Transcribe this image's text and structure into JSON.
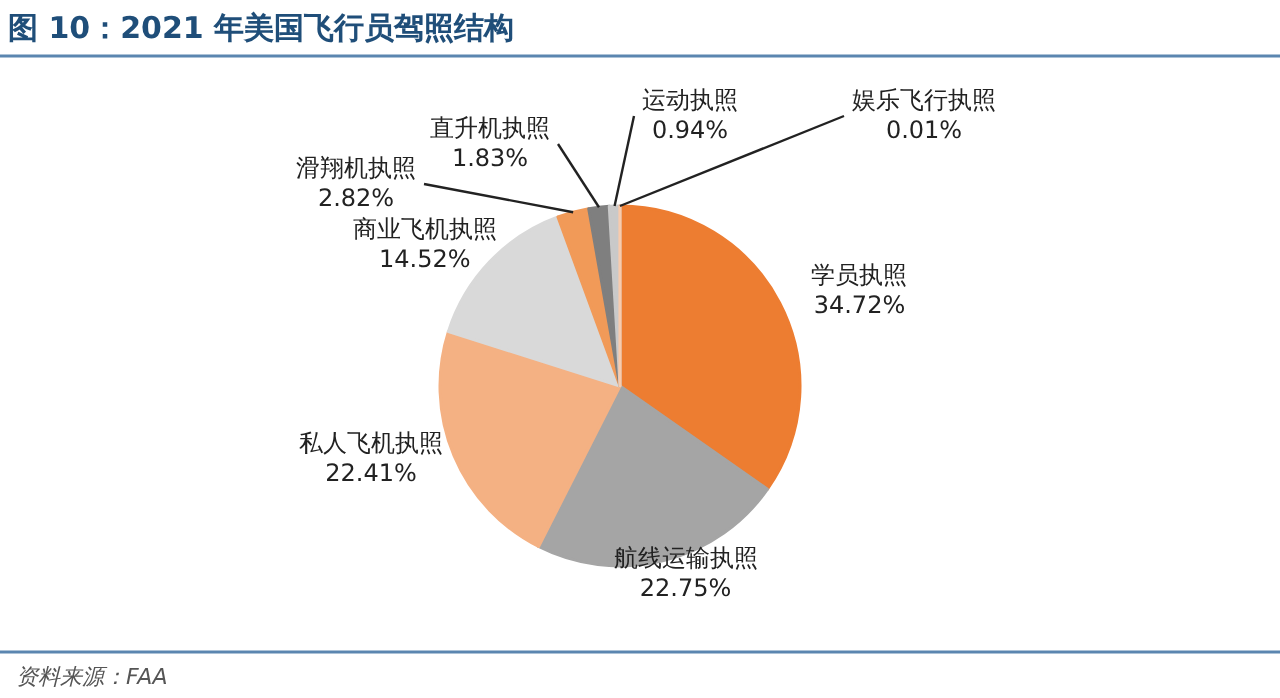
{
  "chart_data": {
    "type": "pie",
    "title": "图 10：2021 年美国飞行员驾照结构",
    "annotations": [
      "资料来源：FAA"
    ],
    "categories": [
      "学员执照",
      "航线运输执照",
      "私人飞机执照",
      "商业飞机执照",
      "滑翔机执照",
      "直升机执照",
      "运动执照",
      "娱乐飞行执照"
    ],
    "values": [
      34.72,
      22.75,
      22.41,
      14.52,
      2.82,
      1.83,
      0.94,
      0.01
    ],
    "value_labels": [
      "34.72%",
      "22.75%",
      "22.41%",
      "14.52%",
      "2.82%",
      "1.83%",
      "0.94%",
      "0.01%"
    ],
    "colors": [
      "#ed7d31",
      "#a5a5a5",
      "#f4b183",
      "#d9d9d9",
      "#f19a58",
      "#7f7f7f",
      "#c9c9c9",
      "#f8cbad"
    ]
  }
}
